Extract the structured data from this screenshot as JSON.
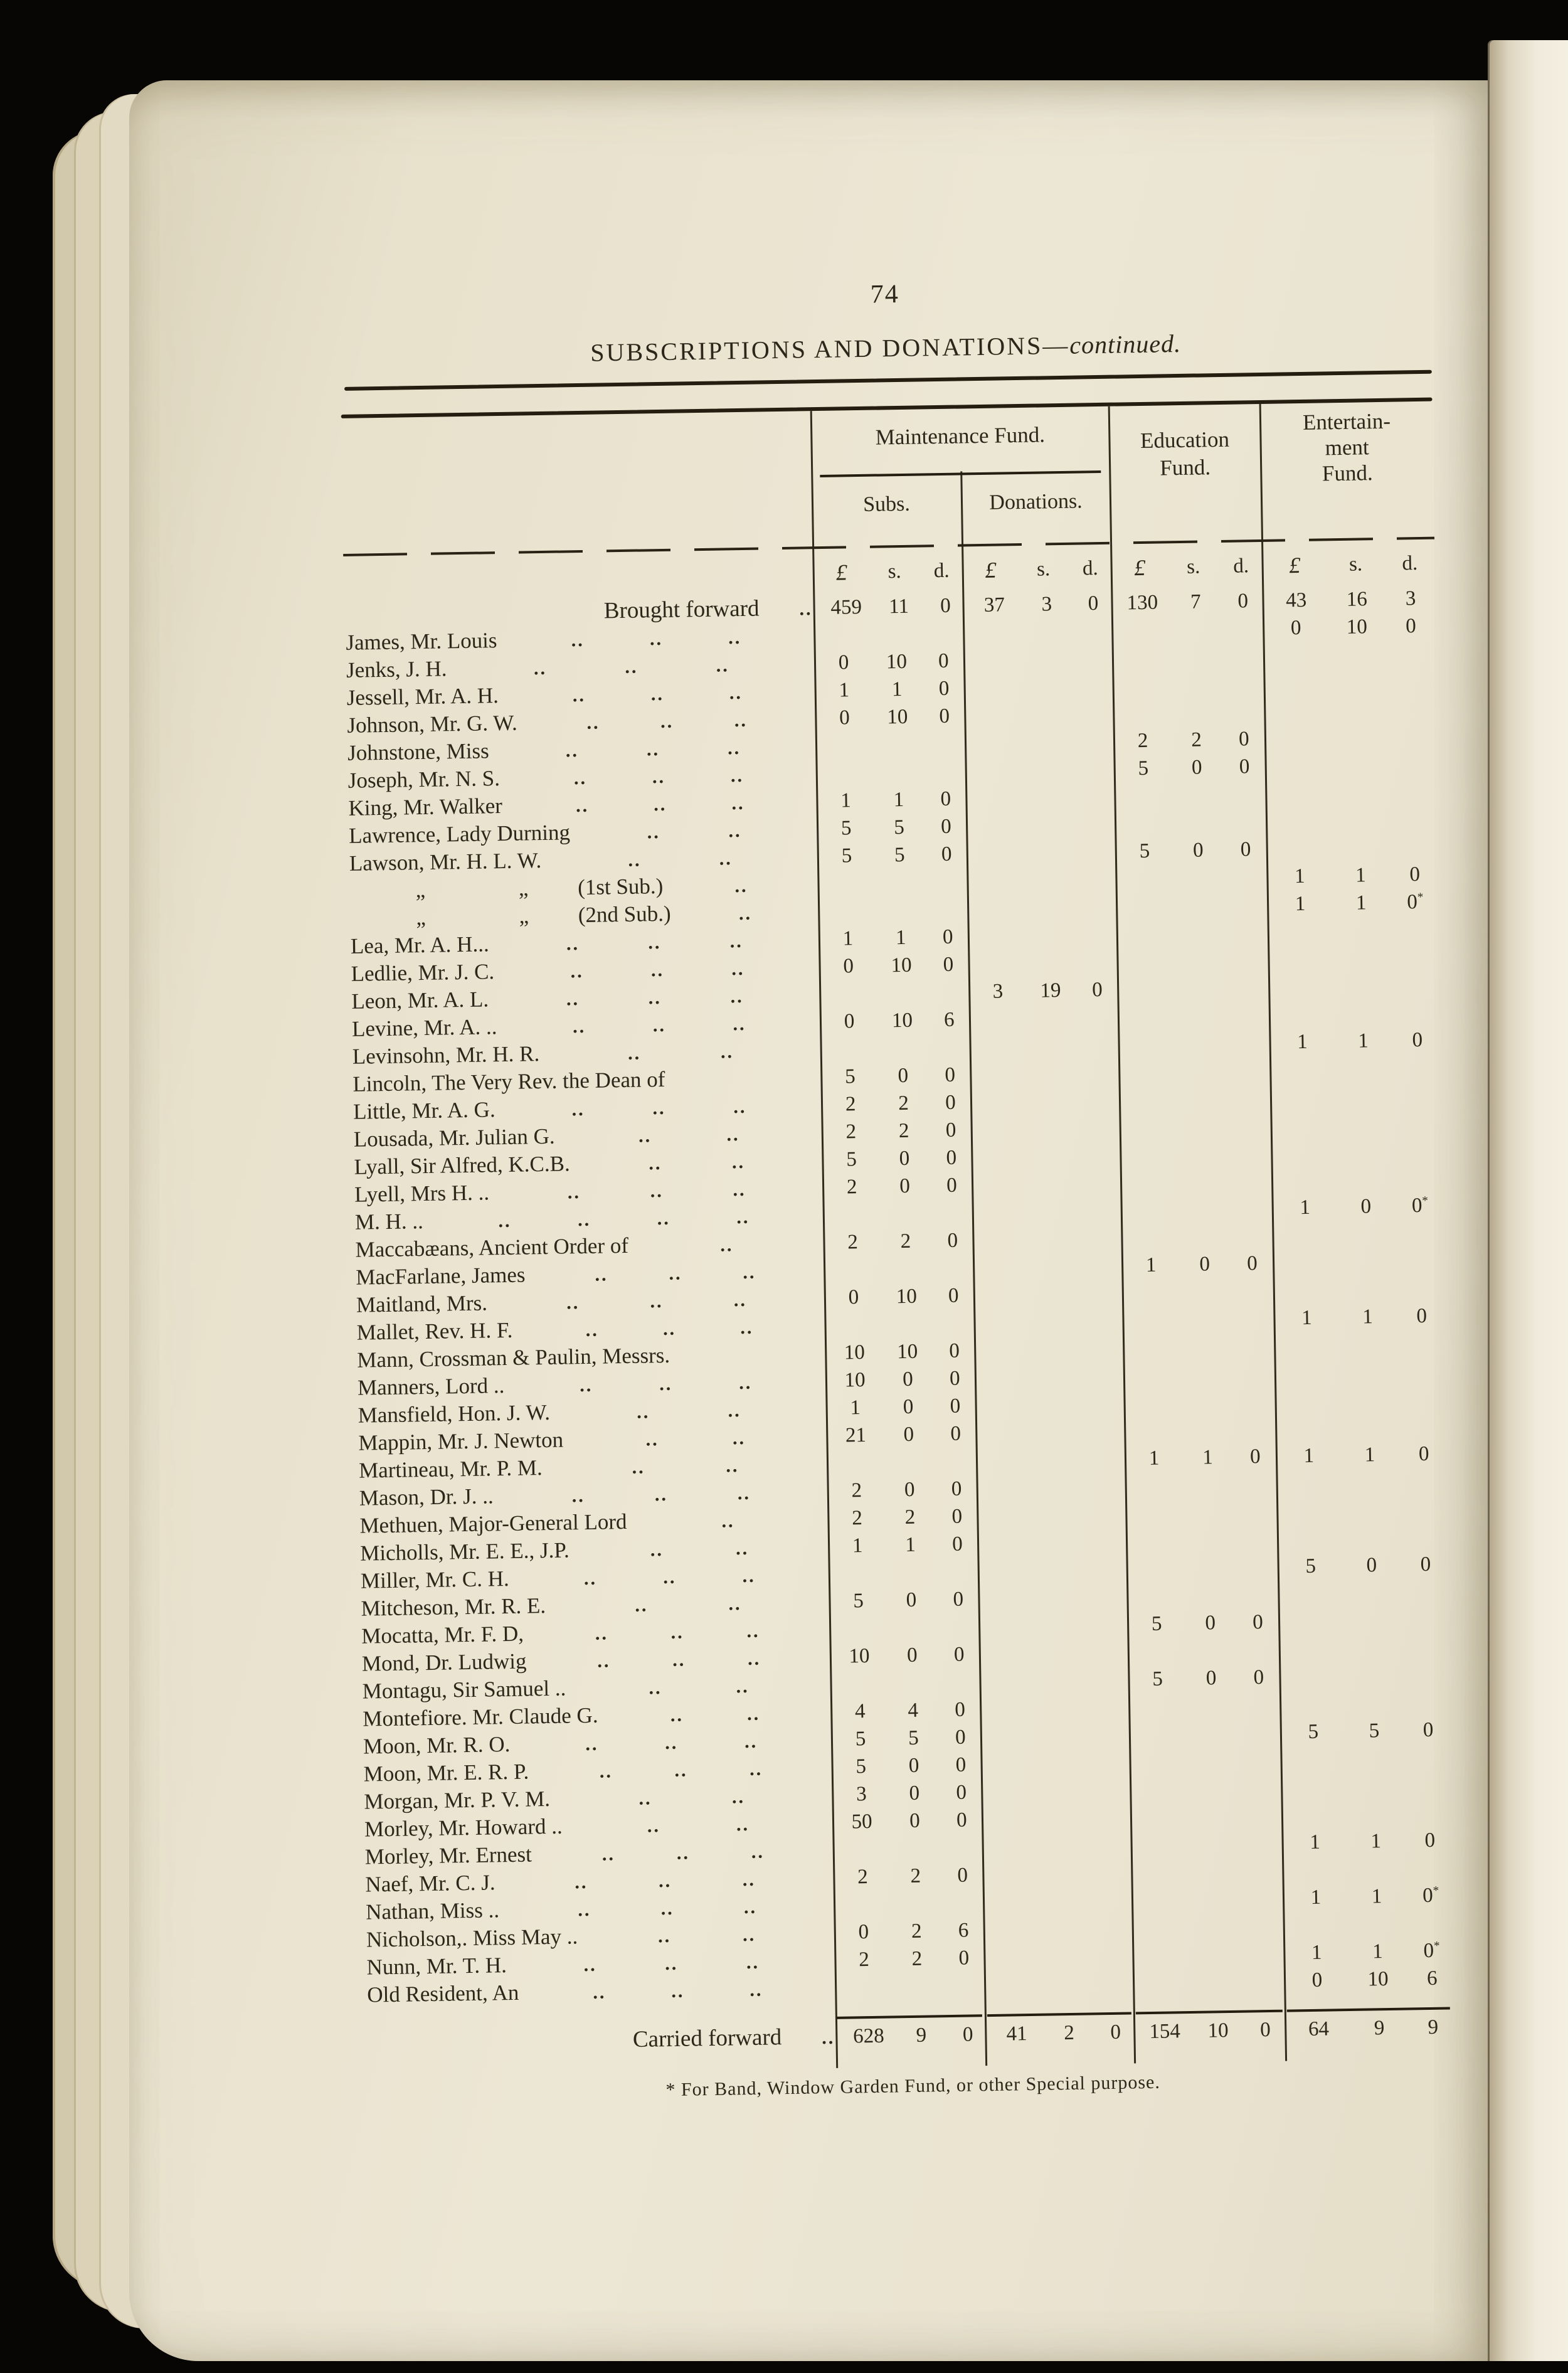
{
  "page": {
    "number": "74",
    "footnote": "* For Band, Window Garden Fund, or other Special purpose."
  },
  "title": {
    "main": "SUBSCRIPTIONS AND DONATIONS—",
    "continued": "continued."
  },
  "table": {
    "header": {
      "maintenance": "Maintenance Fund.",
      "subs": "Subs.",
      "donations": "Donations.",
      "education": [
        "Education",
        "Fund."
      ],
      "entertainment": [
        "Entertain-",
        "ment",
        "Fund."
      ]
    },
    "currency": {
      "pound": "£",
      "s": "s.",
      "d": "d."
    },
    "leader": "..",
    "rows": [
      {
        "name": "Brought forward",
        "type": "total",
        "dots": 1,
        "subs": [
          "459",
          "11",
          "0"
        ],
        "don": [
          "37",
          "3",
          "0"
        ],
        "edu": [
          "130",
          "7",
          "0"
        ],
        "ent": [
          "43",
          "16",
          "3"
        ]
      },
      {
        "name": "James, Mr. Louis",
        "dots": 3,
        "ent": [
          "0",
          "10",
          "0"
        ]
      },
      {
        "name": "Jenks, J. H.",
        "dots": 3,
        "subs": [
          "0",
          "10",
          "0"
        ]
      },
      {
        "name": "Jessell, Mr. A. H.",
        "dots": 3,
        "subs": [
          "1",
          "1",
          "0"
        ]
      },
      {
        "name": "Johnson, Mr. G. W.",
        "dots": 3,
        "subs": [
          "0",
          "10",
          "0"
        ]
      },
      {
        "name": "Johnstone, Miss",
        "dots": 3,
        "edu": [
          "2",
          "2",
          "0"
        ]
      },
      {
        "name": "Joseph, Mr. N. S.",
        "dots": 3,
        "edu": [
          "5",
          "0",
          "0"
        ]
      },
      {
        "name": "King, Mr. Walker",
        "dots": 3,
        "subs": [
          "1",
          "1",
          "0"
        ]
      },
      {
        "name": "Lawrence, Lady Durning",
        "dots": 2,
        "subs": [
          "5",
          "5",
          "0"
        ]
      },
      {
        "name": "Lawson, Mr. H. L. W.",
        "dots": 2,
        "subs": [
          "5",
          "5",
          "0"
        ],
        "edu": [
          "5",
          "0",
          "0"
        ]
      },
      {
        "name": "            „                 „         (1st Sub.)",
        "dots": 1,
        "ent": [
          "1",
          "1",
          "0"
        ]
      },
      {
        "name": "            „                 „         (2nd Sub.)",
        "dots": 1,
        "ent": [
          "1",
          "1",
          "0*"
        ]
      },
      {
        "name": "Lea, Mr. A. H...",
        "dots": 3,
        "subs": [
          "1",
          "1",
          "0"
        ]
      },
      {
        "name": "Ledlie, Mr. J. C.",
        "dots": 3,
        "subs": [
          "0",
          "10",
          "0"
        ]
      },
      {
        "name": "Leon, Mr. A. L.",
        "dots": 3,
        "don": [
          "3",
          "19",
          "0"
        ]
      },
      {
        "name": "Levine, Mr. A. ..",
        "dots": 3,
        "subs": [
          "0",
          "10",
          "6"
        ]
      },
      {
        "name": "Levinsohn, Mr. H. R.",
        "dots": 2,
        "ent": [
          "1",
          "1",
          "0"
        ]
      },
      {
        "name": "Lincoln, The Very Rev. the Dean of",
        "dots": 0,
        "subs": [
          "5",
          "0",
          "0"
        ]
      },
      {
        "name": "Little, Mr. A. G.",
        "dots": 3,
        "subs": [
          "2",
          "2",
          "0"
        ]
      },
      {
        "name": "Lousada, Mr. Julian G.",
        "dots": 2,
        "subs": [
          "2",
          "2",
          "0"
        ]
      },
      {
        "name": "Lyall, Sir Alfred, K.C.B.",
        "dots": 2,
        "subs": [
          "5",
          "0",
          "0"
        ]
      },
      {
        "name": "Lyell, Mrs H. ..",
        "dots": 3,
        "subs": [
          "2",
          "0",
          "0"
        ]
      },
      {
        "name": "M. H. ..",
        "dots": 4,
        "ent": [
          "1",
          "0",
          "0*"
        ]
      },
      {
        "name": "Maccabæans, Ancient Order of",
        "dots": 1,
        "subs": [
          "2",
          "2",
          "0"
        ]
      },
      {
        "name": "MacFarlane, James",
        "dots": 3,
        "edu": [
          "1",
          "0",
          "0"
        ]
      },
      {
        "name": "Maitland, Mrs.",
        "dots": 3,
        "subs": [
          "0",
          "10",
          "0"
        ]
      },
      {
        "name": "Mallet, Rev. H. F.",
        "dots": 3,
        "ent": [
          "1",
          "1",
          "0"
        ]
      },
      {
        "name": "Mann, Crossman & Paulin, Messrs.",
        "dots": 0,
        "subs": [
          "10",
          "10",
          "0"
        ]
      },
      {
        "name": "Manners, Lord ..",
        "dots": 3,
        "subs": [
          "10",
          "0",
          "0"
        ]
      },
      {
        "name": "Mansfield, Hon. J. W.",
        "dots": 2,
        "subs": [
          "1",
          "0",
          "0"
        ]
      },
      {
        "name": "Mappin, Mr. J. Newton",
        "dots": 2,
        "subs": [
          "21",
          "0",
          "0"
        ]
      },
      {
        "name": "Martineau, Mr. P. M.",
        "dots": 2,
        "edu": [
          "1",
          "1",
          "0"
        ],
        "ent": [
          "1",
          "1",
          "0"
        ]
      },
      {
        "name": "Mason, Dr. J. ..",
        "dots": 3,
        "subs": [
          "2",
          "0",
          "0"
        ]
      },
      {
        "name": "Methuen, Major-General Lord",
        "dots": 1,
        "subs": [
          "2",
          "2",
          "0"
        ]
      },
      {
        "name": "Micholls, Mr. E. E., J.P.",
        "dots": 2,
        "subs": [
          "1",
          "1",
          "0"
        ]
      },
      {
        "name": "Miller, Mr. C. H.",
        "dots": 3,
        "ent": [
          "5",
          "0",
          "0"
        ]
      },
      {
        "name": "Mitcheson, Mr. R. E.",
        "dots": 2,
        "subs": [
          "5",
          "0",
          "0"
        ]
      },
      {
        "name": "Mocatta, Mr. F. D,",
        "dots": 3,
        "edu": [
          "5",
          "0",
          "0"
        ]
      },
      {
        "name": "Mond, Dr. Ludwig",
        "dots": 3,
        "subs": [
          "10",
          "0",
          "0"
        ]
      },
      {
        "name": "Montagu, Sir Samuel ..",
        "dots": 2,
        "edu": [
          "5",
          "0",
          "0"
        ]
      },
      {
        "name": "Montefiore. Mr. Claude G.",
        "dots": 2,
        "subs": [
          "4",
          "4",
          "0"
        ]
      },
      {
        "name": "Moon, Mr. R. O.",
        "dots": 3,
        "subs": [
          "5",
          "5",
          "0"
        ],
        "ent": [
          "5",
          "5",
          "0"
        ]
      },
      {
        "name": "Moon, Mr. E. R. P.",
        "dots": 3,
        "subs": [
          "5",
          "0",
          "0"
        ]
      },
      {
        "name": "Morgan, Mr. P. V. M.",
        "dots": 2,
        "subs": [
          "3",
          "0",
          "0"
        ]
      },
      {
        "name": "Morley, Mr. Howard ..",
        "dots": 2,
        "subs": [
          "50",
          "0",
          "0"
        ]
      },
      {
        "name": "Morley, Mr. Ernest",
        "dots": 3,
        "ent": [
          "1",
          "1",
          "0"
        ]
      },
      {
        "name": "Naef, Mr. C. J.",
        "dots": 3,
        "subs": [
          "2",
          "2",
          "0"
        ]
      },
      {
        "name": "Nathan, Miss ..",
        "dots": 3,
        "ent": [
          "1",
          "1",
          "0*"
        ]
      },
      {
        "name": "Nicholson,. Miss May ..",
        "dots": 2,
        "subs": [
          "0",
          "2",
          "6"
        ]
      },
      {
        "name": "Nunn, Mr. T. H.",
        "dots": 3,
        "subs": [
          "2",
          "2",
          "0"
        ],
        "ent": [
          "1",
          "1",
          "0*"
        ]
      },
      {
        "name": "Old Resident, An",
        "dots": 3,
        "ent": [
          "0",
          "10",
          "6"
        ]
      },
      {
        "name": "Carried forward",
        "type": "total",
        "carried": true,
        "dots": 1,
        "subs": [
          "628",
          "9",
          "0"
        ],
        "don": [
          "41",
          "2",
          "0"
        ],
        "edu": [
          "154",
          "10",
          "0"
        ],
        "ent": [
          "64",
          "9",
          "9"
        ]
      }
    ]
  }
}
